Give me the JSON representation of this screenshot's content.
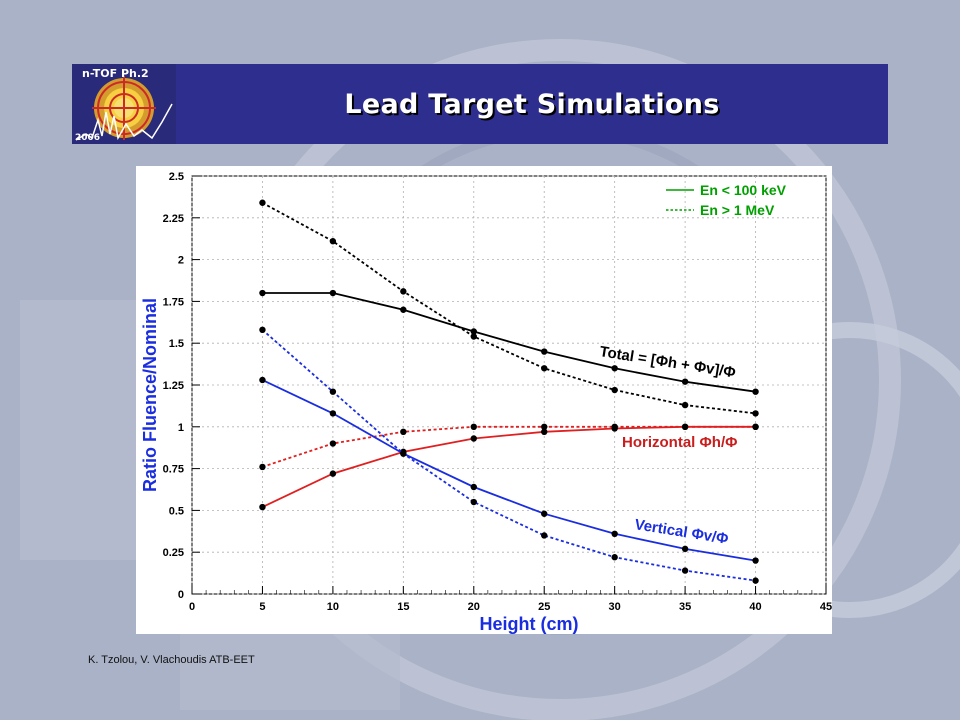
{
  "slide": {
    "title": "Lead Target Simulations",
    "logo_text": "n-TOF Ph.2",
    "logo_year": "2006",
    "credit": "K. Tzolou, V. Vlachoudis ATB-EET",
    "banner_color": "#2e2e8f"
  },
  "chart_data": {
    "type": "line",
    "xlabel": "Height (cm)",
    "ylabel": "Ratio Fluence/Nominal",
    "xlim": [
      0,
      45
    ],
    "ylim": [
      0,
      2.5
    ],
    "xticks": [
      0,
      5,
      10,
      15,
      20,
      25,
      30,
      35,
      40,
      45
    ],
    "yticks": [
      0,
      0.25,
      0.5,
      0.75,
      1,
      1.25,
      1.5,
      1.75,
      2,
      2.25,
      2.5
    ],
    "grid": true,
    "x": [
      5,
      10,
      15,
      20,
      25,
      30,
      35,
      40
    ],
    "legend": {
      "placement": "top-right",
      "entries": [
        {
          "label": "En < 100 keV",
          "style": "solid"
        },
        {
          "label": "En > 1 MeV",
          "style": "dotted"
        }
      ]
    },
    "series": [
      {
        "group": "total",
        "style": "solid",
        "color": "#000000",
        "values": [
          1.8,
          1.8,
          1.7,
          1.57,
          1.45,
          1.35,
          1.27,
          1.21
        ]
      },
      {
        "group": "total",
        "style": "dotted",
        "color": "#000000",
        "values": [
          2.34,
          2.11,
          1.81,
          1.54,
          1.35,
          1.22,
          1.13,
          1.08
        ]
      },
      {
        "group": "horizontal",
        "style": "solid",
        "color": "#e02020",
        "values": [
          0.52,
          0.72,
          0.85,
          0.93,
          0.97,
          0.99,
          1.0,
          1.0
        ]
      },
      {
        "group": "horizontal",
        "style": "dotted",
        "color": "#e02020",
        "values": [
          0.76,
          0.9,
          0.97,
          1.0,
          1.0,
          1.0,
          1.0,
          1.0
        ]
      },
      {
        "group": "vertical",
        "style": "solid",
        "color": "#1a2ee0",
        "values": [
          1.28,
          1.08,
          0.84,
          0.64,
          0.48,
          0.36,
          0.27,
          0.2
        ]
      },
      {
        "group": "vertical",
        "style": "dotted",
        "color": "#1a2ee0",
        "values": [
          1.58,
          1.21,
          0.84,
          0.55,
          0.35,
          0.22,
          0.14,
          0.08
        ]
      }
    ],
    "annotations": [
      {
        "group": "total",
        "text": "Total = [Φh + Φv]/Φ",
        "color": "#000000"
      },
      {
        "group": "horizontal",
        "text": "Horizontal Φh/Φ",
        "color": "#c81e1e"
      },
      {
        "group": "vertical",
        "text": "Vertical Φv/Φ",
        "color": "#1a2ee0"
      }
    ]
  }
}
